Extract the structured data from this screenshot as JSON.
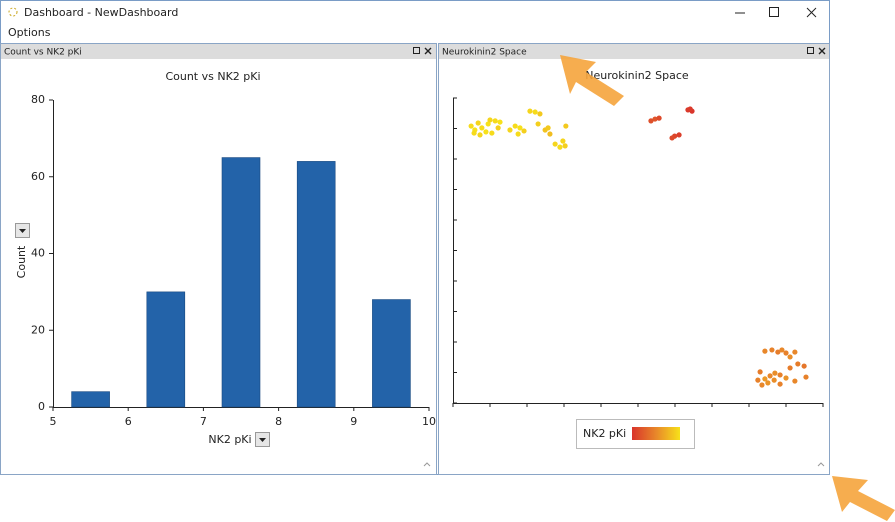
{
  "window": {
    "title": "Dashboard - NewDashboard",
    "menu": [
      "Options"
    ]
  },
  "panels": [
    {
      "title": "Count vs NK2 pKi"
    },
    {
      "title": "Neurokinin2 Space"
    }
  ],
  "chart_data": [
    {
      "type": "bar",
      "title": "Count vs NK2 pKi",
      "x_label": "NK2 pKi",
      "y_label": "Count",
      "x": [
        5.5,
        6.5,
        7.5,
        8.5,
        9.5
      ],
      "values": [
        4,
        30,
        65,
        64,
        28
      ],
      "color": "#2363a9",
      "xlim": [
        5,
        10
      ],
      "xticks": [
        5,
        6,
        7,
        8,
        9,
        10
      ],
      "ylim": [
        0,
        80
      ],
      "yticks": [
        0,
        20,
        40,
        60,
        80
      ]
    },
    {
      "type": "scatter",
      "title": "Neurokinin2 Space",
      "color_label": "NK2 pKi",
      "tick_labels": false,
      "x": [
        0.49,
        0.59,
        0.68,
        0.78,
        0.89,
        0.73,
        0.57,
        0.95,
        1.0,
        1.14,
        1.27,
        1.22,
        1.05,
        1.54,
        1.68,
        1.81,
        1.92,
        1.76,
        2.08,
        2.22,
        2.35,
        2.3,
        2.49,
        2.57,
        2.62,
        2.76,
        2.89,
        3.03,
        3.05,
        2.97,
        5.35,
        5.46,
        5.57,
        5.99,
        6.11,
        5.92,
        6.35,
        6.46,
        6.41,
        8.43,
        8.62,
        8.78,
        8.89,
        9.0,
        9.11,
        9.32,
        9.49,
        9.54,
        9.24,
        9.0,
        8.84,
        8.7,
        8.57,
        8.43,
        8.3,
        8.24,
        8.35,
        8.51,
        8.68,
        8.84,
        9.11,
        9.24
      ],
      "y": [
        9.08,
        8.95,
        9.18,
        9.02,
        8.89,
        8.79,
        8.85,
        9.15,
        9.28,
        9.25,
        9.21,
        9.02,
        8.85,
        8.95,
        9.08,
        9.02,
        8.92,
        8.82,
        9.57,
        9.54,
        9.48,
        9.15,
        8.95,
        9.02,
        8.82,
        8.49,
        8.39,
        8.43,
        9.08,
        8.59,
        9.25,
        9.31,
        9.34,
        8.75,
        8.79,
        8.69,
        9.61,
        9.57,
        9.64,
        1.7,
        1.74,
        1.67,
        1.74,
        1.64,
        1.51,
        1.28,
        1.21,
        0.85,
        0.72,
        0.82,
        0.92,
        0.98,
        0.89,
        0.79,
        1.02,
        0.75,
        0.59,
        0.66,
        0.75,
        0.62,
        1.15,
        1.67
      ],
      "color_values": [
        9.8,
        9.9,
        9.7,
        9.8,
        9.9,
        9.7,
        9.8,
        9.9,
        9.7,
        9.8,
        9.9,
        9.6,
        9.8,
        9.7,
        9.8,
        9.9,
        9.6,
        9.8,
        9.7,
        9.8,
        9.5,
        9.6,
        9.4,
        9.5,
        9.3,
        9.7,
        9.8,
        9.6,
        9.5,
        9.7,
        7.4,
        7.5,
        7.3,
        7.2,
        7.1,
        7.3,
        7.0,
        6.9,
        7.0,
        8.4,
        8.3,
        8.2,
        8.4,
        8.3,
        8.5,
        8.2,
        8.1,
        8.3,
        8.4,
        8.6,
        8.3,
        8.5,
        8.4,
        8.7,
        8.2,
        8.3,
        8.4,
        8.6,
        8.5,
        8.3,
        8.2,
        8.4
      ],
      "xlim": [
        0,
        10
      ],
      "xticks": [
        0,
        1,
        2,
        3,
        4,
        5,
        6,
        7,
        8,
        9,
        10
      ],
      "ylim": [
        0,
        10
      ],
      "yticks": [
        0,
        1,
        2,
        3,
        4,
        5,
        6,
        7,
        8,
        9,
        10
      ]
    }
  ]
}
